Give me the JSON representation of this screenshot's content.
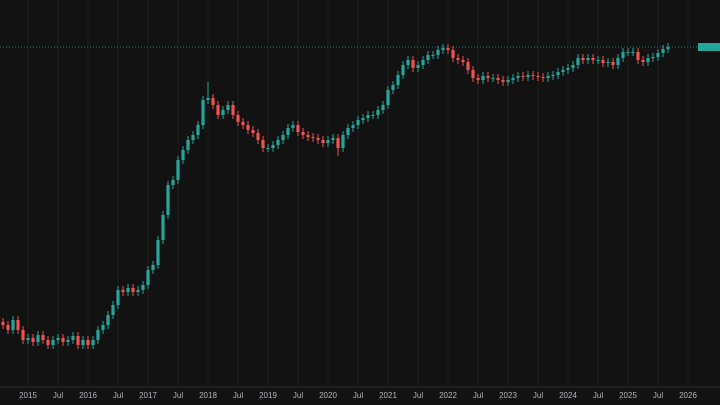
{
  "chart_data": {
    "type": "candlestick",
    "up_color": "#26a69a",
    "down_color": "#ef5350",
    "background": "#121212",
    "grid": true,
    "xlim": [
      "2014-07",
      "2026-07"
    ],
    "ylim": [
      0,
      390
    ],
    "xticks": [
      {
        "value": "2015-01",
        "label": "2015"
      },
      {
        "value": "2015-07",
        "label": "Jul"
      },
      {
        "value": "2016-01",
        "label": "2016"
      },
      {
        "value": "2016-07",
        "label": "Jul"
      },
      {
        "value": "2017-01",
        "label": "2017"
      },
      {
        "value": "2017-07",
        "label": "Jul"
      },
      {
        "value": "2018-01",
        "label": "2018"
      },
      {
        "value": "2018-07",
        "label": "Jul"
      },
      {
        "value": "2019-01",
        "label": "2019"
      },
      {
        "value": "2019-07",
        "label": "Jul"
      },
      {
        "value": "2020-01",
        "label": "2020"
      },
      {
        "value": "2020-07",
        "label": "Jul"
      },
      {
        "value": "2021-01",
        "label": "2021"
      },
      {
        "value": "2021-07",
        "label": "Jul"
      },
      {
        "value": "2022-01",
        "label": "2022"
      },
      {
        "value": "2022-07",
        "label": "Jul"
      },
      {
        "value": "2023-01",
        "label": "2023"
      },
      {
        "value": "2023-07",
        "label": "Jul"
      },
      {
        "value": "2024-01",
        "label": "2024"
      },
      {
        "value": "2024-07",
        "label": "Jul"
      },
      {
        "value": "2025-01",
        "label": "2025"
      },
      {
        "value": "2025-07",
        "label": "Jul"
      },
      {
        "value": "2026-01",
        "label": "2026"
      }
    ],
    "x": [
      "2014-08",
      "2014-09",
      "2014-10",
      "2014-11",
      "2014-12",
      "2015-01",
      "2015-02",
      "2015-03",
      "2015-04",
      "2015-05",
      "2015-06",
      "2015-07",
      "2015-08",
      "2015-09",
      "2015-10",
      "2015-11",
      "2015-12",
      "2016-01",
      "2016-02",
      "2016-03",
      "2016-04",
      "2016-05",
      "2016-06",
      "2016-07",
      "2016-08",
      "2016-09",
      "2016-10",
      "2016-11",
      "2016-12",
      "2017-01",
      "2017-02",
      "2017-03",
      "2017-04",
      "2017-05",
      "2017-06",
      "2017-07",
      "2017-08",
      "2017-09",
      "2017-10",
      "2017-11",
      "2017-12",
      "2018-01",
      "2018-02",
      "2018-03",
      "2018-04",
      "2018-05",
      "2018-06",
      "2018-07",
      "2018-08",
      "2018-09",
      "2018-10",
      "2018-11",
      "2018-12",
      "2019-01",
      "2019-02",
      "2019-03",
      "2019-04",
      "2019-05",
      "2019-06",
      "2019-07",
      "2019-08",
      "2019-09",
      "2019-10",
      "2019-11",
      "2019-12",
      "2020-01",
      "2020-02",
      "2020-03",
      "2020-04",
      "2020-05",
      "2020-06",
      "2020-07",
      "2020-08",
      "2020-09",
      "2020-10",
      "2020-11",
      "2020-12",
      "2021-01",
      "2021-02",
      "2021-03",
      "2021-04",
      "2021-05",
      "2021-06",
      "2021-07",
      "2021-08",
      "2021-09",
      "2021-10",
      "2021-11",
      "2021-12",
      "2022-01",
      "2022-02",
      "2022-03",
      "2022-04",
      "2022-05",
      "2022-06",
      "2022-07",
      "2022-08",
      "2022-09",
      "2022-10",
      "2022-11",
      "2022-12",
      "2023-01",
      "2023-02",
      "2023-03",
      "2023-04",
      "2023-05",
      "2023-06",
      "2023-07",
      "2023-08",
      "2023-09",
      "2023-10",
      "2023-11",
      "2023-12",
      "2024-01",
      "2024-02",
      "2024-03",
      "2024-04",
      "2024-05",
      "2024-06",
      "2024-07",
      "2024-08",
      "2024-09",
      "2024-10",
      "2024-11",
      "2024-12",
      "2025-01",
      "2025-02",
      "2025-03",
      "2025-04",
      "2025-05",
      "2025-06",
      "2025-07",
      "2025-08",
      "2025-09"
    ],
    "open": [
      68,
      65,
      60,
      70,
      60,
      50,
      52,
      48,
      55,
      50,
      45,
      50,
      52,
      48,
      50,
      54,
      45,
      50,
      45,
      50,
      60,
      65,
      75,
      85,
      100,
      98,
      102,
      98,
      100,
      105,
      120,
      125,
      150,
      175,
      205,
      210,
      230,
      240,
      250,
      255,
      265,
      290,
      292,
      285,
      275,
      280,
      285,
      275,
      268,
      265,
      260,
      257,
      250,
      242,
      242,
      245,
      250,
      255,
      262,
      265,
      258,
      255,
      253,
      252,
      250,
      247,
      250,
      252,
      242,
      255,
      262,
      265,
      270,
      272,
      275,
      275,
      280,
      285,
      300,
      305,
      315,
      325,
      330,
      322,
      325,
      330,
      335,
      335,
      340,
      342,
      340,
      332,
      330,
      328,
      320,
      312,
      310,
      314,
      312,
      312,
      310,
      308,
      310,
      312,
      314,
      313,
      315,
      314,
      313,
      312,
      314,
      315,
      318,
      320,
      322,
      325,
      332,
      330,
      332,
      330,
      330,
      327,
      328,
      325,
      332,
      338,
      338,
      338,
      330,
      328,
      332,
      333,
      337,
      341
    ],
    "high": [
      72,
      69,
      74,
      74,
      64,
      56,
      56,
      59,
      59,
      54,
      54,
      56,
      56,
      54,
      58,
      58,
      54,
      54,
      54,
      64,
      69,
      79,
      89,
      104,
      104,
      106,
      106,
      104,
      109,
      124,
      129,
      154,
      179,
      209,
      214,
      234,
      244,
      254,
      259,
      269,
      294,
      308,
      296,
      289,
      284,
      289,
      289,
      279,
      272,
      269,
      264,
      261,
      254,
      246,
      249,
      254,
      259,
      266,
      269,
      269,
      262,
      259,
      257,
      256,
      254,
      254,
      256,
      256,
      259,
      266,
      269,
      274,
      276,
      279,
      279,
      284,
      289,
      304,
      309,
      319,
      329,
      334,
      334,
      329,
      334,
      339,
      339,
      344,
      346,
      346,
      344,
      336,
      334,
      332,
      324,
      316,
      318,
      318,
      316,
      316,
      314,
      314,
      316,
      318,
      318,
      319,
      319,
      318,
      317,
      318,
      319,
      322,
      324,
      326,
      329,
      336,
      336,
      336,
      336,
      334,
      334,
      332,
      332,
      336,
      342,
      342,
      342,
      342,
      334,
      336,
      337,
      341,
      345,
      347
    ],
    "low": [
      61,
      56,
      56,
      56,
      46,
      46,
      44,
      44,
      46,
      41,
      41,
      46,
      44,
      44,
      46,
      41,
      41,
      41,
      41,
      46,
      56,
      61,
      71,
      81,
      94,
      94,
      94,
      94,
      96,
      101,
      116,
      121,
      146,
      171,
      201,
      206,
      226,
      236,
      246,
      251,
      261,
      286,
      281,
      271,
      271,
      276,
      271,
      264,
      261,
      256,
      253,
      246,
      238,
      238,
      238,
      241,
      246,
      251,
      258,
      254,
      251,
      249,
      248,
      246,
      243,
      243,
      246,
      234,
      238,
      251,
      258,
      261,
      266,
      268,
      271,
      271,
      276,
      281,
      296,
      301,
      311,
      321,
      318,
      318,
      321,
      326,
      331,
      331,
      336,
      336,
      328,
      326,
      324,
      316,
      308,
      306,
      306,
      308,
      308,
      306,
      304,
      304,
      306,
      308,
      309,
      309,
      310,
      309,
      308,
      308,
      310,
      311,
      314,
      316,
      318,
      321,
      326,
      326,
      326,
      326,
      323,
      323,
      321,
      321,
      328,
      334,
      334,
      326,
      324,
      324,
      328,
      329,
      333,
      337
    ],
    "close": [
      65,
      60,
      70,
      60,
      50,
      52,
      48,
      55,
      50,
      45,
      50,
      52,
      48,
      50,
      54,
      45,
      50,
      45,
      50,
      60,
      65,
      75,
      85,
      100,
      98,
      102,
      98,
      100,
      105,
      120,
      125,
      150,
      175,
      205,
      210,
      230,
      240,
      250,
      255,
      265,
      290,
      292,
      285,
      275,
      280,
      285,
      275,
      268,
      265,
      260,
      257,
      250,
      242,
      242,
      245,
      250,
      255,
      262,
      265,
      258,
      255,
      253,
      252,
      250,
      247,
      250,
      252,
      242,
      255,
      262,
      265,
      270,
      272,
      275,
      275,
      280,
      285,
      300,
      305,
      315,
      325,
      330,
      322,
      325,
      330,
      335,
      335,
      340,
      342,
      340,
      332,
      330,
      328,
      320,
      312,
      310,
      314,
      312,
      312,
      310,
      308,
      310,
      312,
      314,
      313,
      315,
      314,
      313,
      312,
      314,
      315,
      318,
      320,
      322,
      325,
      332,
      330,
      332,
      330,
      330,
      327,
      328,
      325,
      332,
      338,
      338,
      338,
      330,
      328,
      332,
      333,
      337,
      341,
      343
    ]
  }
}
